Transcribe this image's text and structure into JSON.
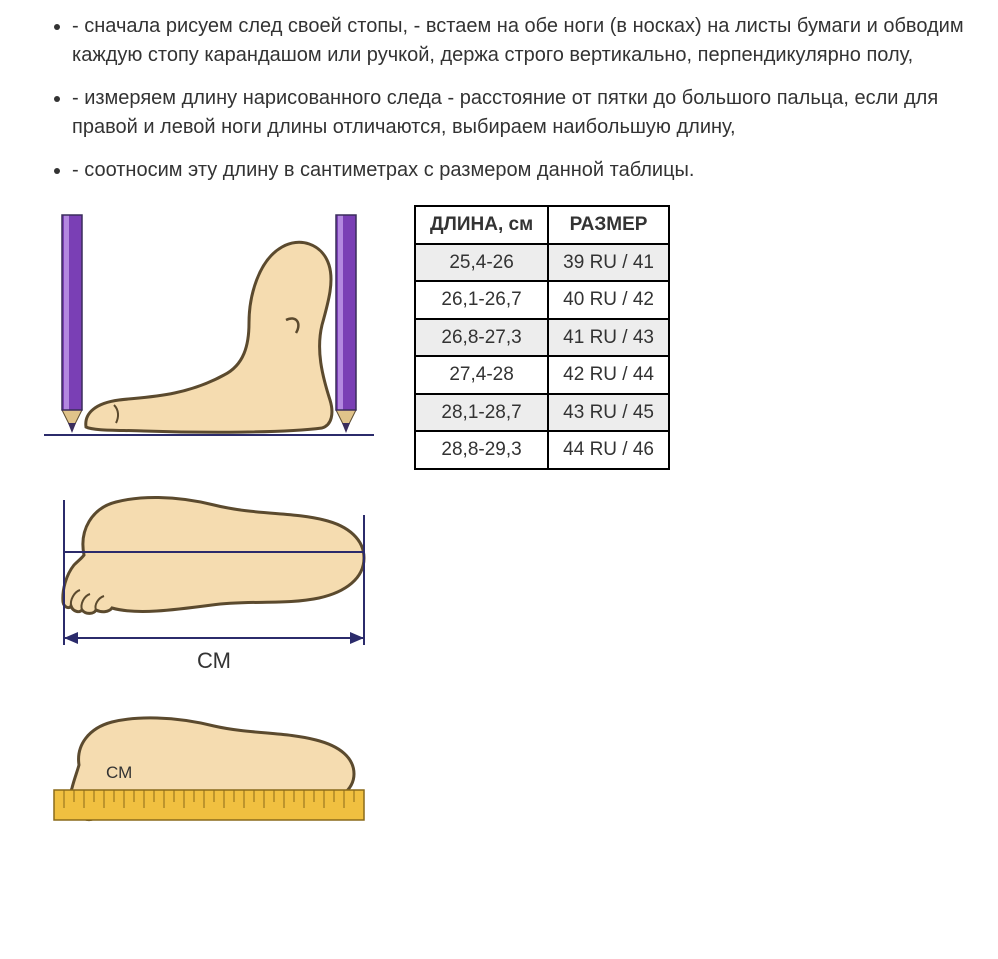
{
  "bullets": [
    "- сначала рисуем след своей стопы, - встаем на обе ноги (в носках) на листы бумаги и обводим каждую стопу карандашом или ручкой, держа строго вертикально, перпендикулярно полу,",
    "- измеряем длину нарисованного следа - расстояние от пятки до большого пальца, если для правой и левой ноги длины отличаются, выбираем наибольшую длину,",
    "- соотносим эту длину в сантиметрах с размером данной таблицы."
  ],
  "table": {
    "headers": [
      "ДЛИНА, см",
      "РАЗМЕР"
    ],
    "rows": [
      {
        "length": "25,4-26",
        "size": "39 RU / 41",
        "shaded": true
      },
      {
        "length": "26,1-26,7",
        "size": "40 RU / 42",
        "shaded": false
      },
      {
        "length": "26,8-27,3",
        "size": "41 RU / 43",
        "shaded": true
      },
      {
        "length": "27,4-28",
        "size": "42 RU / 44",
        "shaded": false
      },
      {
        "length": "28,1-28,7",
        "size": "43 RU / 45",
        "shaded": true
      },
      {
        "length": "28,8-29,3",
        "size": "44 RU / 46",
        "shaded": false
      }
    ]
  },
  "diagrams": {
    "cm_label": "СМ",
    "cm_label_small": "СМ",
    "colors": {
      "foot_fill": "#f5dcb0",
      "foot_stroke": "#5b4a2e",
      "pencil_body": "#7a3fb5",
      "pencil_highlight": "#b388e0",
      "pencil_tip_wood": "#e0c38a",
      "pencil_tip_lead": "#3a2d5c",
      "measure_line": "#2b2b6b",
      "ruler_fill": "#f0c040",
      "ruler_tick": "#8a6a1a",
      "text": "#333333"
    }
  }
}
